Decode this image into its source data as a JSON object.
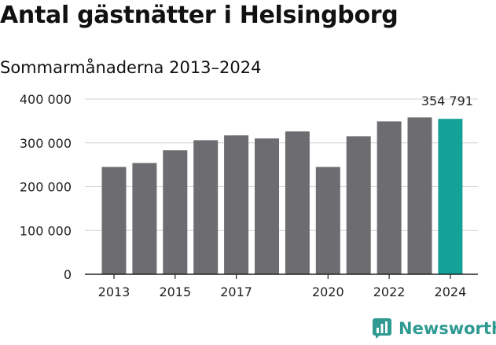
{
  "title": "Antal gästnätter i Helsingborg",
  "subtitle": "Sommarmånaderna 2013–2024",
  "brand": {
    "name": "Newsworthy",
    "color": "#2e9a92",
    "icon": "newsworthy-logo-icon"
  },
  "colors": {
    "bar": "#6d6c70",
    "highlight": "#14a197",
    "grid": "#d0d0d0",
    "axis": "#222222"
  },
  "chart_data": {
    "type": "bar",
    "title": "Antal gästnätter i Helsingborg",
    "subtitle": "Sommarmånaderna 2013–2024",
    "xlabel": "",
    "ylabel": "",
    "categories": [
      "2013",
      "2014",
      "2015",
      "2016",
      "2017",
      "2018",
      "2019",
      "2020",
      "2021",
      "2022",
      "2023",
      "2024"
    ],
    "values": [
      245000,
      254000,
      283000,
      306000,
      317000,
      310000,
      326000,
      245000,
      315000,
      349000,
      358000,
      354791
    ],
    "ylim": [
      0,
      400000
    ],
    "yticks": [
      {
        "value": 0,
        "label": "0"
      },
      {
        "value": 100000,
        "label": "100 000"
      },
      {
        "value": 200000,
        "label": "200 000"
      },
      {
        "value": 300000,
        "label": "300 000"
      },
      {
        "value": 400000,
        "label": "400 000"
      }
    ],
    "xtick_labels": [
      {
        "category": "2013",
        "label": "2013"
      },
      {
        "category": "2015",
        "label": "2015"
      },
      {
        "category": "2017",
        "label": "2017"
      },
      {
        "category": "2020",
        "label": "2020"
      },
      {
        "category": "2022",
        "label": "2022"
      },
      {
        "category": "2024",
        "label": "2024"
      }
    ],
    "highlight": {
      "category": "2024",
      "label": "354 791"
    },
    "grid": true,
    "legend": "none"
  }
}
